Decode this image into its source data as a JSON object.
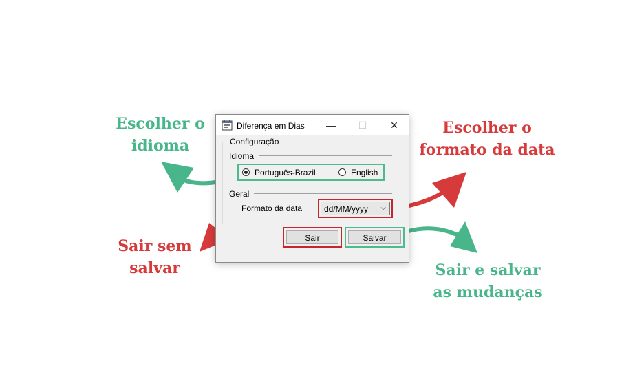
{
  "annotations": {
    "language": [
      "Escolher o",
      "idioma"
    ],
    "date_format": [
      "Escolher o",
      "formato da data"
    ],
    "exit_no_save": [
      "Sair sem",
      "salvar"
    ],
    "exit_save": [
      "Sair e salvar",
      "as mudanças"
    ]
  },
  "window": {
    "title": "Diferença em Dias",
    "controls": {
      "minimize": "—",
      "maximize": "☐",
      "close": "✕"
    }
  },
  "group": {
    "title": "Configuração",
    "language_section": "Idioma",
    "languages": [
      {
        "label": "Português-Brazil",
        "checked": true
      },
      {
        "label": "English",
        "checked": false
      }
    ],
    "general_section": "Geral",
    "date_format_label": "Formato da data",
    "date_format_value": "dd/MM/yyyy"
  },
  "buttons": {
    "exit": "Sair",
    "save": "Salvar"
  },
  "colors": {
    "green": "#48b58a",
    "red": "#d63a3a"
  }
}
